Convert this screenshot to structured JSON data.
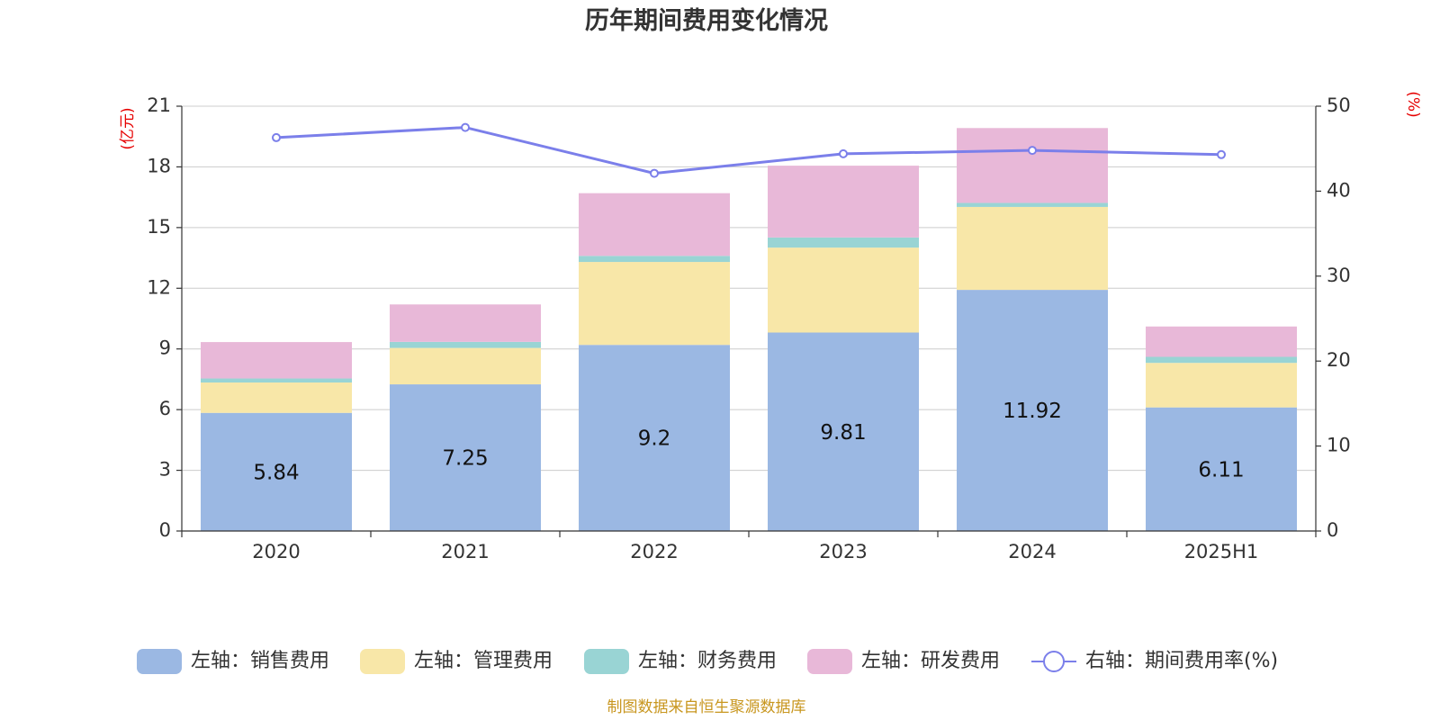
{
  "chart_data": {
    "type": "bar",
    "title": "历年期间费用变化情况",
    "categories": [
      "2020",
      "2021",
      "2022",
      "2023",
      "2024",
      "2025H1"
    ],
    "stacked": true,
    "left_axis": {
      "unit": "(亿元)",
      "ticks": [
        "0",
        "3",
        "6",
        "9",
        "12",
        "15",
        "18",
        "21"
      ],
      "ylim": [
        0,
        21
      ]
    },
    "right_axis": {
      "unit": "(%)",
      "ticks": [
        "0",
        "10",
        "20",
        "30",
        "40",
        "50"
      ],
      "ylim": [
        0,
        50
      ]
    },
    "series": [
      {
        "name": "左轴：销售费用",
        "axis": "left",
        "kind": "bar",
        "color": "#9bb8e3",
        "values": [
          5.84,
          7.25,
          9.2,
          9.81,
          11.92,
          6.11
        ],
        "labels_shown": true
      },
      {
        "name": "左轴：管理费用",
        "axis": "left",
        "kind": "bar",
        "color": "#f8e7a8",
        "values": [
          1.5,
          1.8,
          4.1,
          4.2,
          4.1,
          2.2
        ]
      },
      {
        "name": "左轴：财务费用",
        "axis": "left",
        "kind": "bar",
        "color": "#99d4d4",
        "values": [
          0.2,
          0.3,
          0.3,
          0.5,
          0.2,
          0.3
        ]
      },
      {
        "name": "左轴：研发费用",
        "axis": "left",
        "kind": "bar",
        "color": "#e8b8d8",
        "values": [
          1.8,
          1.85,
          3.1,
          3.55,
          3.7,
          1.5
        ]
      },
      {
        "name": "右轴：期间费用率(%)",
        "axis": "right",
        "kind": "line",
        "color": "#7b7fea",
        "values": [
          46.3,
          47.5,
          42.1,
          44.4,
          44.8,
          44.3
        ]
      }
    ],
    "grid": true,
    "legend_position": "bottom"
  },
  "source_note": "制图数据来自恒生聚源数据库"
}
